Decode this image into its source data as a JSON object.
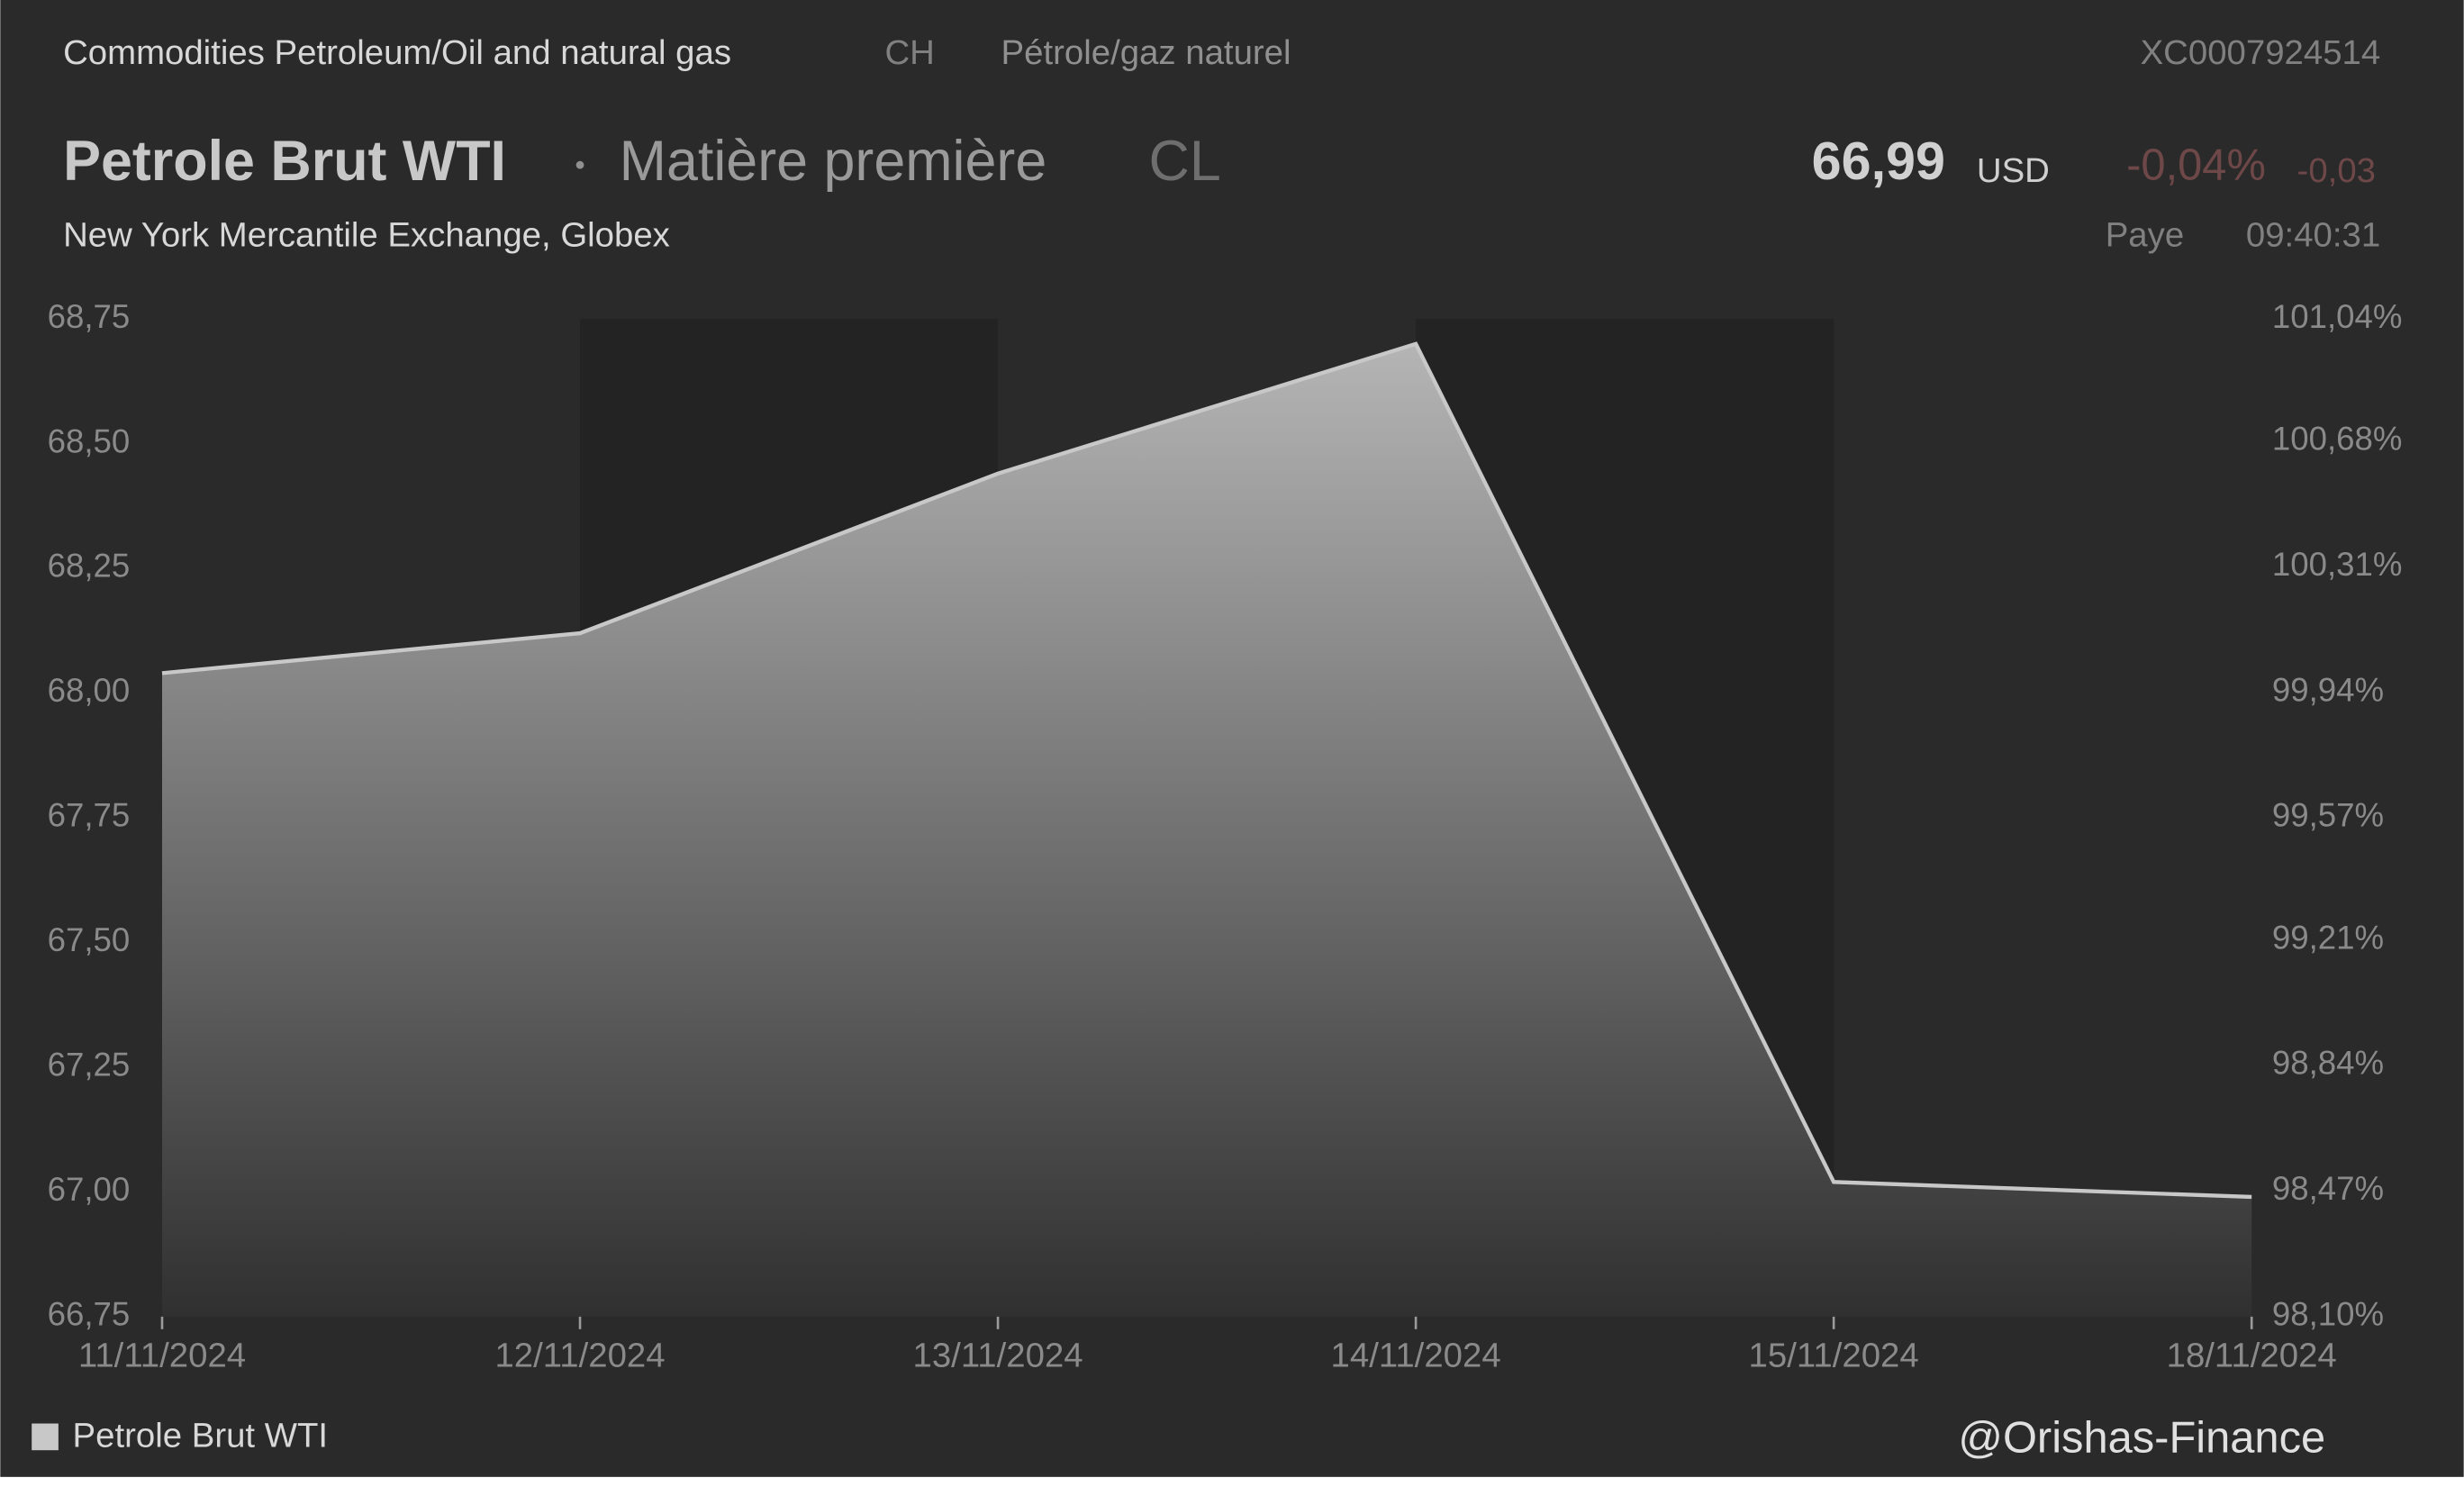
{
  "header": {
    "breadcrumb": "Commodities Petroleum/Oil and natural gas",
    "country": "CH",
    "category_fr": "Pétrole/gaz naturel",
    "isin": "XC0007924514",
    "name": "Petrole Brut WTI",
    "kind": "Matière première",
    "symbol": "CL",
    "price": "66,99",
    "currency": "USD",
    "change_pct": "-0,04%",
    "change_abs": "-0,03",
    "exchange": "New York Mercantile Exchange, Globex",
    "status": "Paye",
    "time": "09:40:31"
  },
  "chart_data": {
    "type": "area",
    "categories": [
      "11/11/2024",
      "12/11/2024",
      "13/11/2024",
      "14/11/2024",
      "15/11/2024",
      "18/11/2024"
    ],
    "series": [
      {
        "name": "Petrole Brut WTI",
        "color": "#c8c8c8",
        "values": [
          68.04,
          68.12,
          68.44,
          68.7,
          67.02,
          66.99
        ]
      }
    ],
    "ylim": [
      66.75,
      68.75
    ],
    "yticks": [
      {
        "value": 66.75,
        "label": "66,75"
      },
      {
        "value": 67.0,
        "label": "67,00"
      },
      {
        "value": 67.25,
        "label": "67,25"
      },
      {
        "value": 67.5,
        "label": "67,50"
      },
      {
        "value": 67.75,
        "label": "67,75"
      },
      {
        "value": 68.0,
        "label": "68,00"
      },
      {
        "value": 68.25,
        "label": "68,25"
      },
      {
        "value": 68.5,
        "label": "68,50"
      },
      {
        "value": 68.75,
        "label": "68,75"
      }
    ],
    "y2lim": [
      98.1,
      101.04
    ],
    "y2ticks": [
      {
        "value": 98.1,
        "label": "98,10%"
      },
      {
        "value": 98.47,
        "label": "98,47%"
      },
      {
        "value": 98.84,
        "label": "98,84%"
      },
      {
        "value": 99.21,
        "label": "99,21%"
      },
      {
        "value": 99.57,
        "label": "99,57%"
      },
      {
        "value": 99.94,
        "label": "99,94%"
      },
      {
        "value": 100.31,
        "label": "100,31%"
      },
      {
        "value": 100.68,
        "label": "100,68%"
      },
      {
        "value": 101.04,
        "label": "101,04%"
      }
    ],
    "watermark": "@Orishas-Finance"
  }
}
